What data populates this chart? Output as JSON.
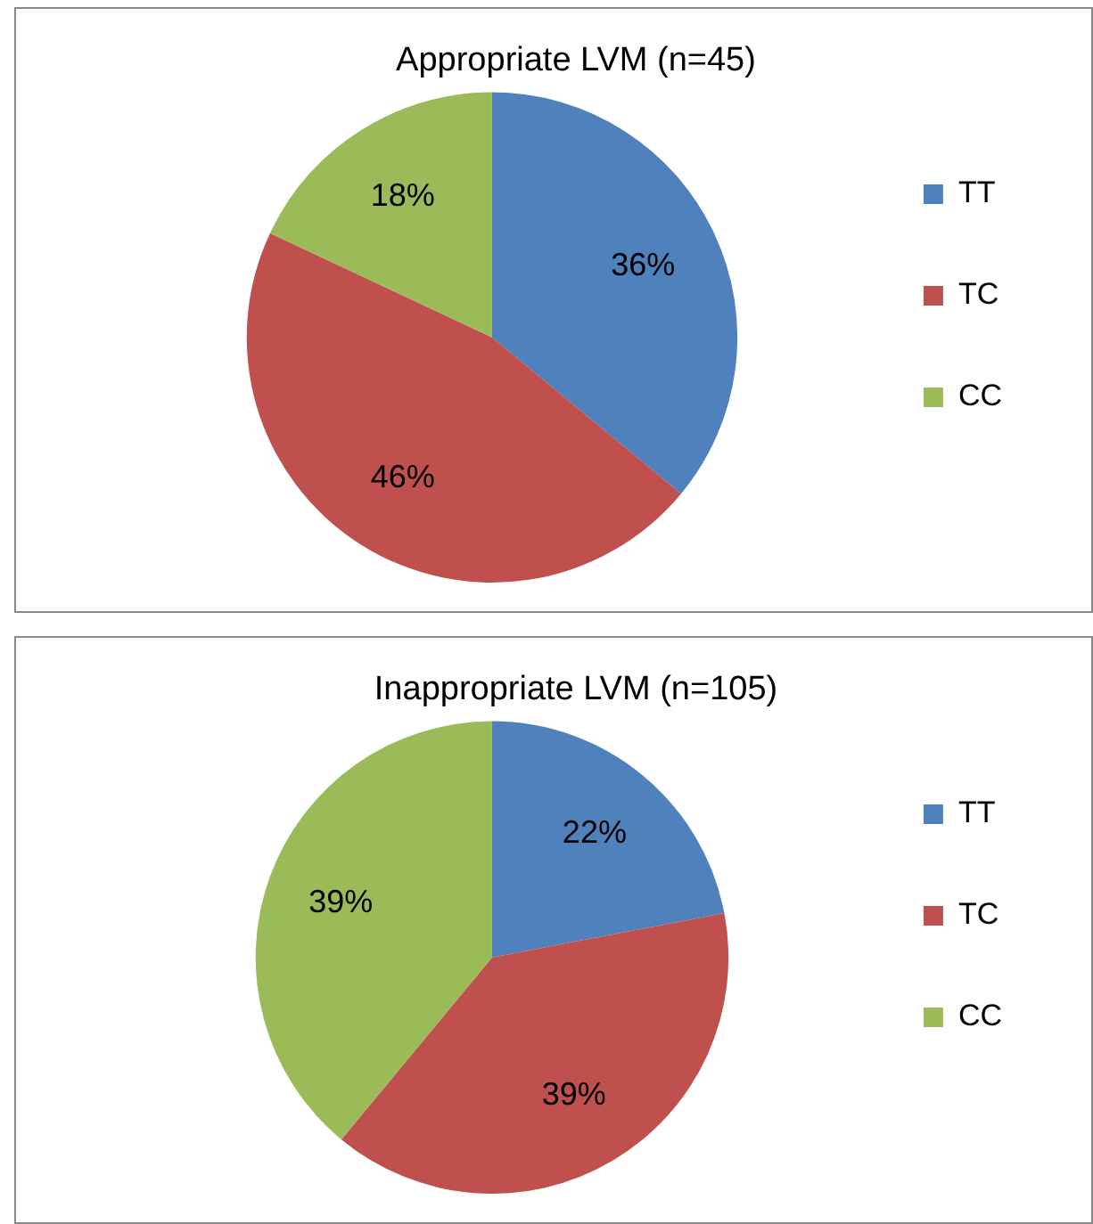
{
  "chart_data": [
    {
      "type": "pie",
      "title": "Appropriate LVM (n=45)",
      "categories": [
        "TT",
        "TC",
        "CC"
      ],
      "values": [
        36,
        46,
        18
      ],
      "colors": [
        "#4f81bd",
        "#c0504d",
        "#9bbb59"
      ],
      "value_labels": [
        "36%",
        "46%",
        "18%"
      ],
      "legend": "right"
    },
    {
      "type": "pie",
      "title": "Inappropriate LVM (n=105)",
      "categories": [
        "TT",
        "TC",
        "CC"
      ],
      "values": [
        22,
        39,
        39
      ],
      "colors": [
        "#4f81bd",
        "#c0504d",
        "#9bbb59"
      ],
      "value_labels": [
        "22%",
        "39%",
        "39%"
      ],
      "legend": "right"
    }
  ]
}
